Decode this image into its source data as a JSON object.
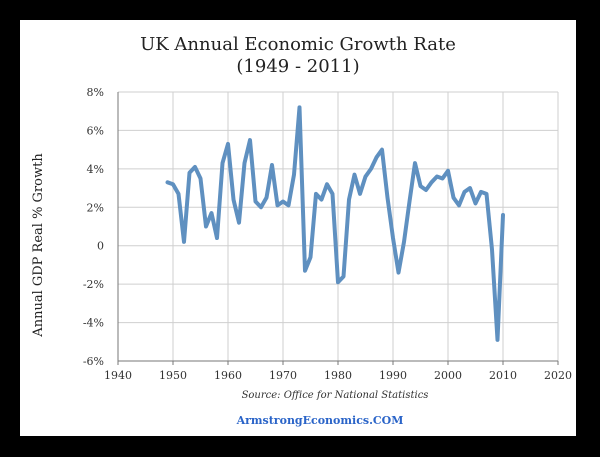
{
  "chart_data": {
    "type": "line",
    "title": "UK Annual Economic Growth Rate",
    "subtitle": "(1949 - 2011)",
    "xlabel": "",
    "ylabel": "Annual GDP Real % Growth",
    "xlim": [
      1940,
      2020
    ],
    "ylim": [
      -6,
      8
    ],
    "x_ticks": [
      1940,
      1950,
      1960,
      1970,
      1980,
      1990,
      2000,
      2010,
      2020
    ],
    "y_ticks": [
      -6,
      -4,
      -2,
      0,
      2,
      4,
      6,
      8
    ],
    "y_tick_labels": [
      "-6%",
      "-4%",
      "-2%",
      "0",
      "2%",
      "4%",
      "6%",
      "8%"
    ],
    "grid": true,
    "source": "Source: Office for National Statistics",
    "series": [
      {
        "color": "#5f90c0",
        "points": [
          [
            1949,
            3.3
          ],
          [
            1950,
            3.2
          ],
          [
            1951,
            2.7
          ],
          [
            1952,
            0.2
          ],
          [
            1953,
            3.8
          ],
          [
            1954,
            4.1
          ],
          [
            1955,
            3.5
          ],
          [
            1956,
            1.0
          ],
          [
            1957,
            1.7
          ],
          [
            1958,
            0.4
          ],
          [
            1959,
            4.3
          ],
          [
            1960,
            5.3
          ],
          [
            1961,
            2.4
          ],
          [
            1962,
            1.2
          ],
          [
            1963,
            4.3
          ],
          [
            1964,
            5.5
          ],
          [
            1965,
            2.3
          ],
          [
            1966,
            2.0
          ],
          [
            1967,
            2.5
          ],
          [
            1968,
            4.2
          ],
          [
            1969,
            2.1
          ],
          [
            1970,
            2.3
          ],
          [
            1971,
            2.1
          ],
          [
            1972,
            3.7
          ],
          [
            1973,
            7.2
          ],
          [
            1974,
            -1.3
          ],
          [
            1975,
            -0.6
          ],
          [
            1976,
            2.7
          ],
          [
            1977,
            2.4
          ],
          [
            1978,
            3.2
          ],
          [
            1979,
            2.7
          ],
          [
            1980,
            -1.9
          ],
          [
            1981,
            -1.6
          ],
          [
            1982,
            2.4
          ],
          [
            1983,
            3.7
          ],
          [
            1984,
            2.7
          ],
          [
            1985,
            3.6
          ],
          [
            1986,
            4.0
          ],
          [
            1987,
            4.6
          ],
          [
            1988,
            5.0
          ],
          [
            1989,
            2.5
          ],
          [
            1990,
            0.4
          ],
          [
            1991,
            -1.4
          ],
          [
            1992,
            0.2
          ],
          [
            1993,
            2.3
          ],
          [
            1994,
            4.3
          ],
          [
            1995,
            3.1
          ],
          [
            1996,
            2.9
          ],
          [
            1997,
            3.3
          ],
          [
            1998,
            3.6
          ],
          [
            1999,
            3.5
          ],
          [
            2000,
            3.9
          ],
          [
            2001,
            2.5
          ],
          [
            2002,
            2.1
          ],
          [
            2003,
            2.8
          ],
          [
            2004,
            3.0
          ],
          [
            2005,
            2.2
          ],
          [
            2006,
            2.8
          ],
          [
            2007,
            2.7
          ],
          [
            2008,
            -0.2
          ],
          [
            2009,
            -4.9
          ],
          [
            2010,
            1.6
          ]
        ]
      }
    ]
  },
  "footer": {
    "brand": "ArmstrongEconomics.COM"
  }
}
